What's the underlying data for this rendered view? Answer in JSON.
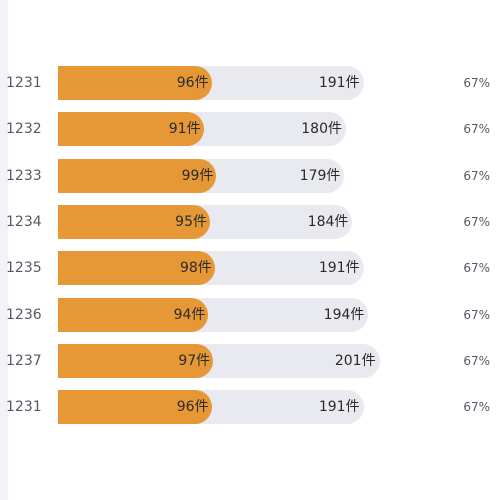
{
  "chart_data": {
    "type": "bar",
    "categories": [
      "1231",
      "1232",
      "1233",
      "1234",
      "1235",
      "1236",
      "1237",
      "1231"
    ],
    "series": [
      {
        "values": [
          96,
          91,
          99,
          95,
          98,
          94,
          97,
          96
        ]
      },
      {
        "values": [
          191,
          180,
          179,
          184,
          191,
          194,
          201,
          191
        ]
      }
    ],
    "value_suffix": "件",
    "percentages": [
      "67%",
      "67%",
      "67%",
      "67%",
      "67%",
      "67%",
      "67%",
      "67%"
    ],
    "colors": {
      "fill": "#e69836",
      "track": "#e9eaef"
    }
  }
}
